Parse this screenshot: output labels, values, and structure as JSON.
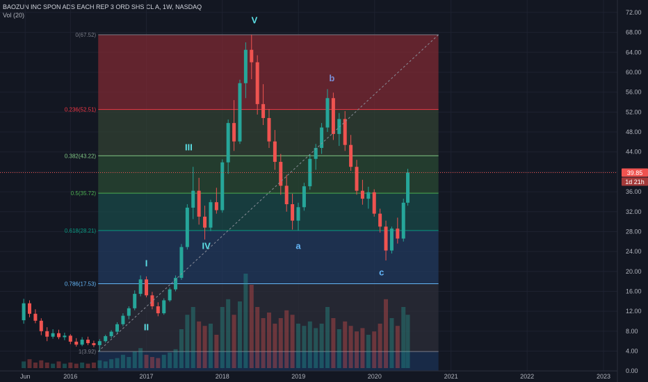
{
  "header": {
    "title": "BAOZUN INC SPON ADS EACH REP 3 ORD SHS CL A, 1W, NASDAQ",
    "volume_label": "Vol (20)"
  },
  "colors": {
    "background": "#131722",
    "up": "#26a69a",
    "down": "#ef5350",
    "grid": "#1e2230",
    "trend": "#8a8e99"
  },
  "chart_data": {
    "type": "candlestick",
    "y_ticks": [
      "72.00",
      "68.00",
      "64.00",
      "60.00",
      "56.00",
      "52.00",
      "48.00",
      "44.00",
      "40.00",
      "36.00",
      "32.00",
      "28.00",
      "24.00",
      "20.00",
      "16.00",
      "12.00",
      "8.00",
      "4.00",
      "0.00"
    ],
    "ylim": [
      -2.2,
      74.5
    ],
    "x_ticks": [
      "Jun",
      "2016",
      "2017",
      "2018",
      "2019",
      "2020",
      "2021",
      "2022",
      "2023"
    ],
    "last_price": {
      "value": 39.85,
      "label": "39.85",
      "countdown": "1d 21h"
    },
    "fib_levels": [
      {
        "ratio": 0,
        "label": "0(67.52)",
        "price": 67.52,
        "color": "#787b86",
        "fill": "#7e2a33"
      },
      {
        "ratio": 0.236,
        "label": "0.236(52.51)",
        "price": 52.51,
        "color": "#f23645",
        "fill": "#324133"
      },
      {
        "ratio": 0.382,
        "label": "0.382(43.22)",
        "price": 43.22,
        "color": "#81c784",
        "fill": "#2a4a33"
      },
      {
        "ratio": 0.5,
        "label": "0.5(35.72)",
        "price": 35.72,
        "color": "#4caf50",
        "fill": "#1a4a48"
      },
      {
        "ratio": 0.618,
        "label": "0.618(28.21)",
        "price": 28.21,
        "color": "#089981",
        "fill": "#213a5e"
      },
      {
        "ratio": 0.786,
        "label": "0.786(17.53)",
        "price": 17.53,
        "color": "#64b5f6",
        "fill": "#2c2e38"
      },
      {
        "ratio": 1,
        "label": "1(3.92)",
        "price": 3.92,
        "color": "#787b86",
        "fill": "#1b3154"
      }
    ],
    "waves": [
      {
        "label": "I",
        "date": "2017-01-02",
        "price": 21.0,
        "color": "#5ce0e6"
      },
      {
        "label": "II",
        "date": "2017-01-02",
        "price": 8.2,
        "color": "#5ce0e6"
      },
      {
        "label": "III",
        "date": "2017-07-24",
        "price": 44.3,
        "color": "#5ce0e6"
      },
      {
        "label": "IV",
        "date": "2017-10-16",
        "price": 24.5,
        "color": "#5ce0e6"
      },
      {
        "label": "V",
        "date": "2018-06-04",
        "price": 69.8,
        "color": "#5ce0e6"
      },
      {
        "label": "a",
        "date": "2018-12-31",
        "price": 24.5,
        "color": "#64b5f6"
      },
      {
        "label": "b",
        "date": "2019-06-10",
        "price": 58.2,
        "color": "#7b8fd6"
      },
      {
        "label": "c",
        "date": "2020-02-03",
        "price": 19.2,
        "color": "#64b5f6"
      }
    ],
    "trend_line": {
      "from": {
        "date": "2016-05-16",
        "price": 3.92
      },
      "to": {
        "date": "2020-11-02",
        "price": 67.52
      }
    },
    "candles": [
      [
        "2015-05-25",
        10.2,
        14.5,
        9.5,
        13.6
      ],
      [
        "2015-06-22",
        13.6,
        14.2,
        10.8,
        11.5
      ],
      [
        "2015-07-20",
        11.5,
        12.4,
        9.6,
        10.1
      ],
      [
        "2015-08-17",
        10.1,
        10.6,
        7.2,
        8.0
      ],
      [
        "2015-09-14",
        8.0,
        8.8,
        6.0,
        6.9
      ],
      [
        "2015-10-12",
        6.9,
        8.4,
        6.5,
        7.6
      ],
      [
        "2015-11-09",
        7.6,
        8.3,
        6.4,
        6.8
      ],
      [
        "2015-12-07",
        6.8,
        7.7,
        6.2,
        7.1
      ],
      [
        "2016-01-04",
        7.1,
        7.4,
        5.4,
        5.9
      ],
      [
        "2016-02-01",
        5.9,
        6.6,
        4.9,
        5.3
      ],
      [
        "2016-02-29",
        5.3,
        6.8,
        5.0,
        6.3
      ],
      [
        "2016-03-28",
        6.3,
        6.9,
        5.2,
        5.6
      ],
      [
        "2016-04-25",
        5.6,
        6.1,
        4.8,
        5.2
      ],
      [
        "2016-05-23",
        5.2,
        6.4,
        3.92,
        6.0
      ],
      [
        "2016-06-20",
        6.0,
        7.3,
        5.7,
        7.0
      ],
      [
        "2016-07-18",
        7.0,
        8.2,
        6.6,
        7.9
      ],
      [
        "2016-08-15",
        7.9,
        9.8,
        7.6,
        9.4
      ],
      [
        "2016-09-12",
        9.4,
        11.6,
        9.0,
        11.1
      ],
      [
        "2016-10-10",
        11.1,
        13.0,
        10.4,
        12.6
      ],
      [
        "2016-11-07",
        12.6,
        16.2,
        12.2,
        15.5
      ],
      [
        "2016-12-05",
        15.5,
        19.2,
        15.0,
        18.4
      ],
      [
        "2017-01-02",
        18.4,
        19.0,
        14.8,
        15.2
      ],
      [
        "2017-01-30",
        15.2,
        15.9,
        12.4,
        13.0
      ],
      [
        "2017-02-27",
        13.0,
        13.8,
        11.0,
        11.6
      ],
      [
        "2017-03-27",
        11.6,
        14.6,
        11.3,
        14.2
      ],
      [
        "2017-04-24",
        14.2,
        16.8,
        13.9,
        16.4
      ],
      [
        "2017-05-22",
        16.4,
        19.2,
        16.0,
        18.7
      ],
      [
        "2017-06-19",
        18.7,
        25.5,
        18.3,
        24.9
      ],
      [
        "2017-07-17",
        24.9,
        33.5,
        24.4,
        32.8
      ],
      [
        "2017-08-14",
        32.8,
        41.0,
        30.5,
        36.2
      ],
      [
        "2017-09-11",
        36.2,
        38.8,
        29.4,
        31.0
      ],
      [
        "2017-10-09",
        31.0,
        33.2,
        26.4,
        28.8
      ],
      [
        "2017-11-06",
        28.8,
        34.4,
        28.1,
        33.9
      ],
      [
        "2017-12-04",
        33.9,
        36.8,
        31.6,
        32.3
      ],
      [
        "2018-01-01",
        32.3,
        42.5,
        31.8,
        41.9
      ],
      [
        "2018-01-29",
        41.9,
        50.5,
        39.6,
        49.8
      ],
      [
        "2018-02-26",
        49.8,
        54.4,
        44.2,
        46.1
      ],
      [
        "2018-03-26",
        46.1,
        58.5,
        45.6,
        57.8
      ],
      [
        "2018-04-23",
        57.8,
        66.0,
        54.8,
        64.5
      ],
      [
        "2018-05-21",
        64.5,
        67.52,
        58.6,
        62.0
      ],
      [
        "2018-06-18",
        62.0,
        63.4,
        51.5,
        53.6
      ],
      [
        "2018-07-16",
        53.6,
        57.6,
        49.4,
        50.8
      ],
      [
        "2018-08-13",
        50.8,
        52.6,
        44.8,
        46.1
      ],
      [
        "2018-09-10",
        46.1,
        48.4,
        40.4,
        42.0
      ],
      [
        "2018-10-08",
        42.0,
        43.6,
        35.4,
        37.2
      ],
      [
        "2018-11-05",
        37.2,
        39.4,
        32.0,
        33.5
      ],
      [
        "2018-12-03",
        33.5,
        35.6,
        28.4,
        30.2
      ],
      [
        "2018-12-31",
        30.2,
        33.8,
        28.21,
        32.9
      ],
      [
        "2019-01-28",
        32.9,
        37.8,
        32.2,
        37.1
      ],
      [
        "2019-02-25",
        37.1,
        43.4,
        36.4,
        42.6
      ],
      [
        "2019-03-25",
        42.6,
        45.6,
        40.4,
        44.8
      ],
      [
        "2019-04-22",
        44.8,
        49.8,
        43.6,
        48.9
      ],
      [
        "2019-05-20",
        48.9,
        56.6,
        48.0,
        54.8
      ],
      [
        "2019-06-17",
        54.8,
        55.9,
        46.4,
        47.6
      ],
      [
        "2019-07-15",
        47.6,
        51.8,
        45.2,
        50.6
      ],
      [
        "2019-08-12",
        50.6,
        52.2,
        44.2,
        45.4
      ],
      [
        "2019-09-09",
        45.4,
        47.4,
        40.2,
        41.0
      ],
      [
        "2019-10-07",
        41.0,
        42.4,
        35.4,
        36.2
      ],
      [
        "2019-11-04",
        36.2,
        38.4,
        33.4,
        34.6
      ],
      [
        "2019-12-02",
        34.6,
        37.0,
        32.6,
        35.9
      ],
      [
        "2019-12-30",
        35.9,
        36.5,
        31.0,
        31.6
      ],
      [
        "2020-01-27",
        31.6,
        32.6,
        27.8,
        29.0
      ],
      [
        "2020-02-24",
        29.0,
        30.2,
        22.2,
        24.2
      ],
      [
        "2020-03-23",
        24.2,
        29.0,
        23.6,
        28.6
      ],
      [
        "2020-04-20",
        28.6,
        30.8,
        25.6,
        26.6
      ],
      [
        "2020-05-18",
        26.6,
        34.6,
        26.0,
        33.8
      ],
      [
        "2020-06-08",
        33.8,
        40.6,
        33.2,
        39.85
      ]
    ],
    "volume": [
      [
        "2015-05-25",
        0.06
      ],
      [
        "2015-06-22",
        0.08
      ],
      [
        "2015-07-20",
        0.05
      ],
      [
        "2015-08-17",
        0.07
      ],
      [
        "2015-09-14",
        0.05
      ],
      [
        "2015-10-12",
        0.04
      ],
      [
        "2015-11-09",
        0.06
      ],
      [
        "2015-12-07",
        0.04
      ],
      [
        "2016-01-04",
        0.05
      ],
      [
        "2016-02-01",
        0.04
      ],
      [
        "2016-02-29",
        0.05
      ],
      [
        "2016-03-28",
        0.04
      ],
      [
        "2016-04-25",
        0.05
      ],
      [
        "2016-05-23",
        0.07
      ],
      [
        "2016-06-20",
        0.06
      ],
      [
        "2016-07-18",
        0.08
      ],
      [
        "2016-08-15",
        0.09
      ],
      [
        "2016-09-12",
        0.12
      ],
      [
        "2016-10-10",
        0.1
      ],
      [
        "2016-11-07",
        0.15
      ],
      [
        "2016-12-05",
        0.18
      ],
      [
        "2017-01-02",
        0.12
      ],
      [
        "2017-01-30",
        0.1
      ],
      [
        "2017-02-27",
        0.09
      ],
      [
        "2017-03-27",
        0.12
      ],
      [
        "2017-04-24",
        0.14
      ],
      [
        "2017-05-22",
        0.17
      ],
      [
        "2017-06-19",
        0.35
      ],
      [
        "2017-07-17",
        0.48
      ],
      [
        "2017-08-14",
        0.55
      ],
      [
        "2017-09-11",
        0.42
      ],
      [
        "2017-10-09",
        0.38
      ],
      [
        "2017-11-06",
        0.4
      ],
      [
        "2017-12-04",
        0.3
      ],
      [
        "2018-01-01",
        0.55
      ],
      [
        "2018-01-29",
        0.62
      ],
      [
        "2018-02-26",
        0.48
      ],
      [
        "2018-03-26",
        0.6
      ],
      [
        "2018-04-23",
        0.85
      ],
      [
        "2018-05-21",
        0.75
      ],
      [
        "2018-06-18",
        0.55
      ],
      [
        "2018-07-16",
        0.45
      ],
      [
        "2018-08-13",
        0.5
      ],
      [
        "2018-09-10",
        0.4
      ],
      [
        "2018-10-08",
        0.45
      ],
      [
        "2018-11-05",
        0.52
      ],
      [
        "2018-12-03",
        0.48
      ],
      [
        "2018-12-31",
        0.4
      ],
      [
        "2019-01-28",
        0.38
      ],
      [
        "2019-02-25",
        0.42
      ],
      [
        "2019-03-25",
        0.36
      ],
      [
        "2019-04-22",
        0.4
      ],
      [
        "2019-05-20",
        0.55
      ],
      [
        "2019-06-17",
        0.45
      ],
      [
        "2019-07-15",
        0.35
      ],
      [
        "2019-08-12",
        0.42
      ],
      [
        "2019-09-09",
        0.38
      ],
      [
        "2019-10-07",
        0.33
      ],
      [
        "2019-11-04",
        0.36
      ],
      [
        "2019-12-02",
        0.3
      ],
      [
        "2019-12-30",
        0.33
      ],
      [
        "2020-01-27",
        0.4
      ],
      [
        "2020-02-24",
        0.62
      ],
      [
        "2020-03-23",
        0.45
      ],
      [
        "2020-04-20",
        0.38
      ],
      [
        "2020-05-18",
        0.55
      ],
      [
        "2020-06-08",
        0.48
      ]
    ]
  }
}
